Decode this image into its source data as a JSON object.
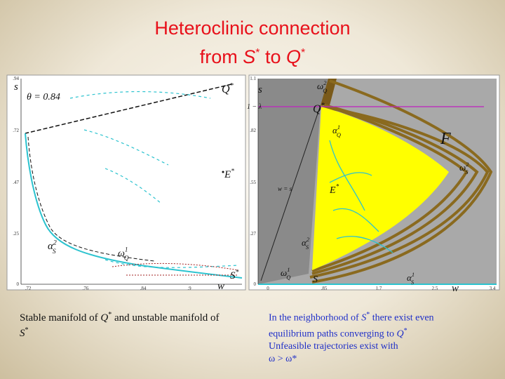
{
  "title": {
    "line1": "Heteroclinic connection",
    "line2": [
      "from ",
      "S",
      "*",
      " to ",
      "Q",
      "*"
    ]
  },
  "figures": {
    "left": {
      "yticks": [
        ".94",
        ".72",
        ".47",
        ".25",
        "0"
      ],
      "xticks": [
        ".72",
        ".76",
        ".84",
        ".9"
      ],
      "labels": [
        {
          "base": "s"
        },
        {
          "base": "θ = 0.84"
        },
        {
          "base": "Q",
          "sup": "*"
        },
        {
          "base": "E",
          "sup": "*"
        },
        {
          "base": "α",
          "sub": "S",
          "sup": "2"
        },
        {
          "base": "ω",
          "sub": "Q",
          "sup": "1"
        },
        {
          "base": "S",
          "sup": "*"
        },
        {
          "base": "w"
        }
      ]
    },
    "right": {
      "yticks": [
        "1.1",
        ".82",
        ".55",
        ".27",
        "0"
      ],
      "xticks": [
        "0",
        ".85",
        "1.7",
        "2.5",
        "3.4"
      ],
      "labels": [
        {
          "base": "s"
        },
        {
          "base": "1 − λ"
        },
        {
          "base": "ω",
          "sub": "Q",
          "sup": "2"
        },
        {
          "base": "Q",
          "sup": "*"
        },
        {
          "base": "α",
          "sub": "Q",
          "sup": "1"
        },
        {
          "base": "F"
        },
        {
          "base": "ω",
          "sub": "S",
          "sup": "2"
        },
        {
          "base": "E",
          "sup": "*"
        },
        {
          "base": "w = s"
        },
        {
          "base": "α",
          "sub": "S",
          "sup": "2"
        },
        {
          "base": "ω",
          "sub": "Q",
          "sup": "1"
        },
        {
          "base": "S"
        },
        {
          "base": "α",
          "sub": "S",
          "sup": "1"
        },
        {
          "base": "w"
        }
      ]
    }
  },
  "captions": {
    "left": [
      "Stable manifold of ",
      "Q",
      "*",
      " and unstable manifold of ",
      "S",
      "*"
    ],
    "right": {
      "line1": [
        "In the neighborhood of ",
        "S",
        "*",
        " there exist even equilibrium paths converging to ",
        "Q",
        "*"
      ],
      "line2": "Unfeasible trajectories exist with",
      "line3": "ω > ω*"
    }
  }
}
